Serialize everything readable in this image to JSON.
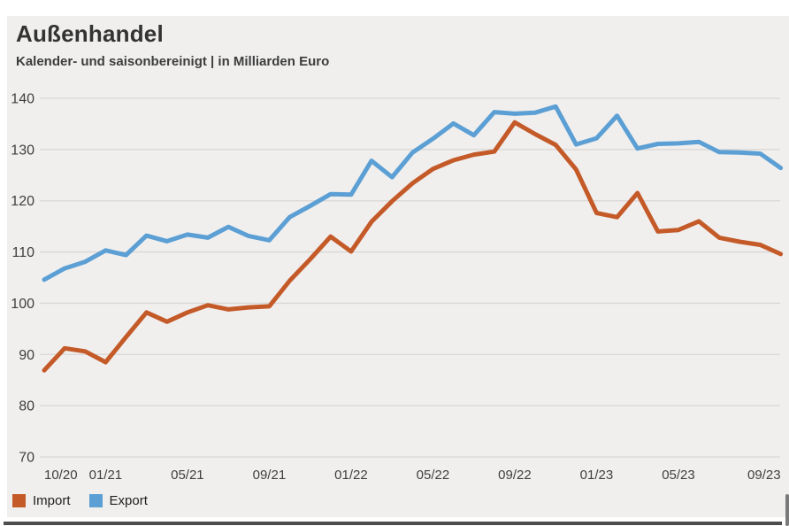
{
  "page": {
    "title": "Außenhandel",
    "subtitle": "Kalender- und saisonbereinigt | in Milliarden Euro"
  },
  "legend": [
    {
      "label": "Import",
      "color": "#c45a28"
    },
    {
      "label": "Export",
      "color": "#5b9fd4"
    }
  ],
  "colors": {
    "card_background": "#f0efee",
    "gridline": "#d8d7d5",
    "axis_text": "#3f3f3f",
    "import_line": "#c45a28",
    "export_line": "#5b9fd4",
    "bottom_bar": "#4d4d4d"
  },
  "chart_data": {
    "type": "line",
    "title": "Außenhandel",
    "subtitle": "Kalender- und saisonbereinigt | in Milliarden Euro",
    "unit": "Milliarden Euro",
    "x": [
      "10/20",
      "11/20",
      "12/20",
      "01/21",
      "02/21",
      "03/21",
      "04/21",
      "05/21",
      "06/21",
      "07/21",
      "08/21",
      "09/21",
      "10/21",
      "11/21",
      "12/21",
      "01/22",
      "02/22",
      "03/22",
      "04/22",
      "05/22",
      "06/22",
      "07/22",
      "08/22",
      "09/22",
      "10/22",
      "11/22",
      "12/22",
      "01/23",
      "02/23",
      "03/23",
      "04/23",
      "05/23",
      "06/23",
      "07/23",
      "08/23",
      "09/23",
      "10/23"
    ],
    "series": [
      {
        "name": "Import",
        "values": [
          86.9,
          91.2,
          90.6,
          88.5,
          93.4,
          98.2,
          96.4,
          98.2,
          99.6,
          98.8,
          99.2,
          99.4,
          104.4,
          108.6,
          113.0,
          110.1,
          115.9,
          119.9,
          123.4,
          126.2,
          127.9,
          129.0,
          129.6,
          135.3,
          133.0,
          130.9,
          126.1,
          117.6,
          116.8,
          121.5,
          114.0,
          114.3,
          116.0,
          112.8,
          112.0,
          111.4,
          109.6
        ]
      },
      {
        "name": "Export",
        "values": [
          104.6,
          106.8,
          108.1,
          110.3,
          109.4,
          113.2,
          112.1,
          113.4,
          112.8,
          114.9,
          113.1,
          112.3,
          116.8,
          119.0,
          121.3,
          121.2,
          127.8,
          124.6,
          129.4,
          132.1,
          135.1,
          132.8,
          137.3,
          137.0,
          137.2,
          138.4,
          131.0,
          132.2,
          136.6,
          130.2,
          131.1,
          131.2,
          131.5,
          129.5,
          129.4,
          129.2,
          126.4
        ]
      }
    ],
    "ylim": [
      70,
      140
    ],
    "yticks": [
      140,
      130,
      120,
      110,
      100,
      90,
      80,
      70
    ],
    "xticks": [
      "10/20",
      "01/21",
      "05/21",
      "09/21",
      "01/22",
      "05/22",
      "09/22",
      "01/23",
      "05/23",
      "09/23"
    ],
    "grid": true,
    "legend_position": "bottom-left"
  }
}
